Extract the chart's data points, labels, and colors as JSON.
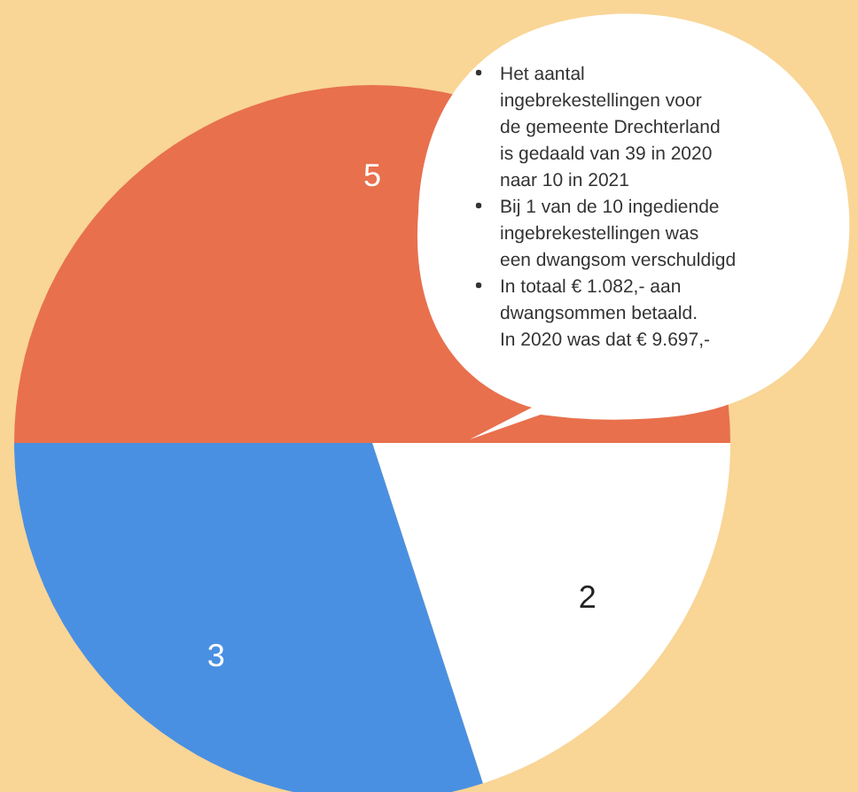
{
  "chart_data": {
    "type": "pie",
    "categories": [
      null,
      null,
      null
    ],
    "values": [
      5,
      2,
      3
    ],
    "colors": [
      "#e8704d",
      "#ffffff",
      "#4a90e2"
    ],
    "data_labels": true,
    "annotations": [
      "Het aantal ingebrekestellingen voor de gemeente Drechterland is gedaald van 39 in 2020 naar 10 in 2021",
      "Bij 1 van de 10 ingediende ingebrekestellingen was een dwangsom verschuldigd",
      "In totaal € 1.082,- aan dwangsommen betaald.\nIn 2020 was dat € 9.697,-"
    ]
  }
}
